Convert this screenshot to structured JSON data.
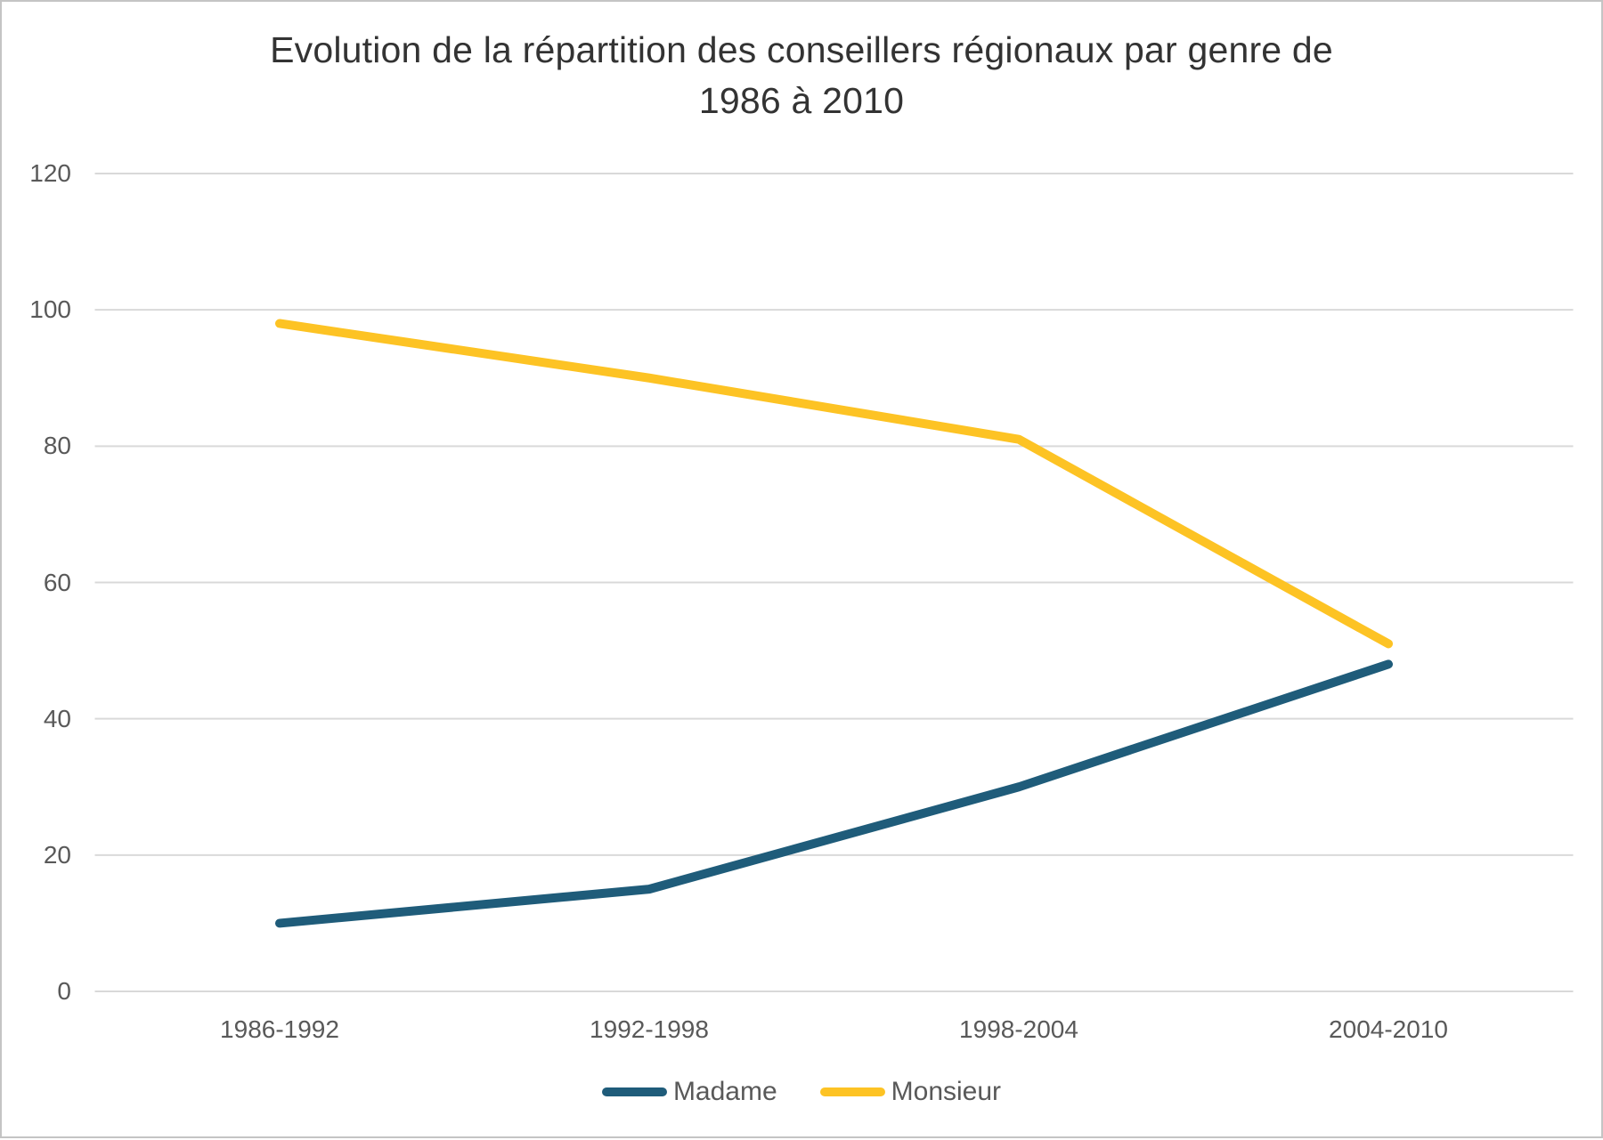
{
  "header": {
    "title_line1": "Evolution de la répartition des conseillers régionaux par genre de",
    "title_line2": "1986 à 2010"
  },
  "chart_data": {
    "type": "line",
    "title": "Evolution de la répartition des conseillers régionaux par genre de 1986 à 2010",
    "categories": [
      "1986-1992",
      "1992-1998",
      "1998-2004",
      "2004-2010"
    ],
    "series": [
      {
        "name": "Madame",
        "color": "#1F5C7A",
        "values": [
          10,
          15,
          30,
          48
        ]
      },
      {
        "name": "Monsieur",
        "color": "#FDC324",
        "values": [
          98,
          90,
          81,
          51
        ]
      }
    ],
    "xlabel": "",
    "ylabel": "",
    "ylim": [
      0,
      120
    ],
    "yticks": [
      0,
      20,
      40,
      60,
      80,
      100,
      120
    ],
    "grid": true,
    "legend_position": "bottom",
    "colors": {
      "grid": "#D9D9D9",
      "axis_text": "#595959",
      "title_text": "#333333",
      "background": "#FFFFFF",
      "border": "#C4C4C4"
    }
  }
}
